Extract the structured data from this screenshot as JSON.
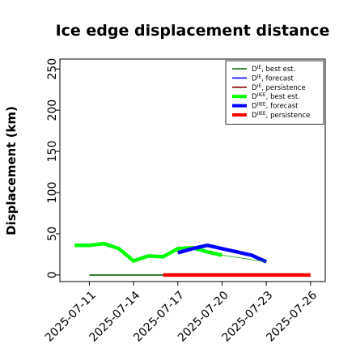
{
  "chart_data": {
    "type": "line",
    "title": "Ice edge displacement distance",
    "xlabel": "",
    "ylabel": "Displacement (km)",
    "xlim": [
      "2025-07-09",
      "2025-07-27"
    ],
    "ylim": [
      -8,
      262
    ],
    "grid": false,
    "legend_position": "top-right",
    "y_ticks": [
      "0",
      "50",
      "100",
      "150",
      "200",
      "250"
    ],
    "x_ticks": [
      {
        "date": "2025-07-11",
        "label": "2025-07-11",
        "color": "#000000"
      },
      {
        "date": "2025-07-14",
        "label": "2025-07-14",
        "color": "#000000"
      },
      {
        "date": "2025-07-17",
        "label": "2025-07-17",
        "color": "#228B22"
      },
      {
        "date": "2025-07-20",
        "label": "2025-07-20",
        "color": "#000000"
      },
      {
        "date": "2025-07-23",
        "label": "2025-07-23",
        "color": "#000000"
      },
      {
        "date": "2025-07-26",
        "label": "2025-07-26",
        "color": "#000000"
      }
    ],
    "series": [
      {
        "name": "D^IE, best est.",
        "legend_base": "D",
        "legend_sup": "IE",
        "legend_rest": ", best est.",
        "color": "#006400",
        "width": 1.6,
        "x": [
          "2025-07-11",
          "2025-07-12",
          "2025-07-13",
          "2025-07-14",
          "2025-07-15",
          "2025-07-16",
          "2025-07-17"
        ],
        "y": [
          0,
          0,
          0,
          0,
          0,
          0,
          0
        ]
      },
      {
        "name": "D^IE, forecast",
        "legend_base": "D",
        "legend_sup": "IE",
        "legend_rest": ", forecast",
        "color": "#0000ff",
        "width": 1.6,
        "x": [],
        "y": []
      },
      {
        "name": "D^IE, persistence",
        "legend_base": "D",
        "legend_sup": "IE",
        "legend_rest": ", persistence",
        "color": "#8b0000",
        "width": 1.6,
        "x": [],
        "y": []
      },
      {
        "name": "D^IIEE, best est.",
        "legend_base": "D",
        "legend_sup": "IIEE",
        "legend_rest": ", best est.",
        "color": "#00ff00",
        "width": 4.5,
        "x": [
          "2025-07-10",
          "2025-07-11",
          "2025-07-12",
          "2025-07-13",
          "2025-07-14",
          "2025-07-15",
          "2025-07-16",
          "2025-07-17",
          "2025-07-18",
          "2025-07-19",
          "2025-07-20"
        ],
        "y": [
          36,
          36,
          38,
          32,
          17,
          23,
          22,
          32,
          33,
          28,
          24
        ]
      },
      {
        "name": "D^IIEE, forecast",
        "legend_base": "D",
        "legend_sup": "IIEE",
        "legend_rest": ", forecast",
        "color": "#0000ff",
        "width": 4.5,
        "x": [
          "2025-07-17",
          "2025-07-18",
          "2025-07-19",
          "2025-07-20",
          "2025-07-21",
          "2025-07-22",
          "2025-07-23"
        ],
        "y": [
          27,
          32,
          36,
          32,
          28,
          24,
          16
        ]
      },
      {
        "name": "D^IIEE, persistence",
        "legend_base": "D",
        "legend_sup": "IIEE",
        "legend_rest": ", persistence",
        "color": "#ff0000",
        "width": 4.5,
        "x": [
          "2025-07-16",
          "2025-07-26"
        ],
        "y": [
          0,
          0
        ]
      }
    ],
    "thin_connector": {
      "color": "#00aa00",
      "width": 0.8,
      "x": [
        "2025-07-20",
        "2025-07-23"
      ],
      "y": [
        24,
        16
      ]
    }
  }
}
